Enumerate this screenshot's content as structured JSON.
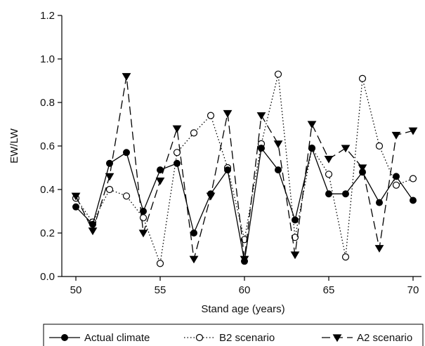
{
  "chart_data": {
    "type": "line",
    "title": "",
    "xlabel": "Stand age (years)",
    "ylabel": "EW/LW",
    "xlim": [
      50,
      70
    ],
    "ylim": [
      0.0,
      1.2
    ],
    "xticks": [
      50,
      55,
      60,
      65,
      70
    ],
    "xtick_labels": [
      "50",
      "55",
      "60",
      "65",
      "70"
    ],
    "yticks": [
      0.0,
      0.2,
      0.4,
      0.6,
      0.8,
      1.0,
      1.2
    ],
    "ytick_labels": [
      "0.0",
      "0.2",
      "0.4",
      "0.6",
      "0.8",
      "1.0",
      "1.2"
    ],
    "grid": false,
    "legend_position": "bottom",
    "x": [
      50,
      51,
      52,
      53,
      54,
      55,
      56,
      57,
      58,
      59,
      60,
      61,
      62,
      63,
      64,
      65,
      66,
      67,
      68,
      69,
      70
    ],
    "series": [
      {
        "name": "Actual climate",
        "line_style": "solid",
        "marker": "filled-circle",
        "color": "#000000",
        "values": [
          0.32,
          0.24,
          0.52,
          0.57,
          0.3,
          0.49,
          0.52,
          0.2,
          0.38,
          0.49,
          0.07,
          0.59,
          0.49,
          0.26,
          0.59,
          0.38,
          0.38,
          0.48,
          0.34,
          0.46,
          0.35
        ]
      },
      {
        "name": "B2 scenario",
        "line_style": "dotted",
        "marker": "open-circle",
        "color": "#000000",
        "values": [
          0.36,
          0.25,
          0.4,
          0.37,
          0.27,
          0.06,
          0.57,
          0.66,
          0.74,
          0.5,
          0.17,
          0.61,
          0.93,
          0.18,
          0.59,
          0.47,
          0.09,
          0.91,
          0.6,
          0.42,
          0.45
        ]
      },
      {
        "name": "A2 scenario",
        "line_style": "dashed",
        "marker": "filled-triangle-down",
        "color": "#000000",
        "values": [
          0.37,
          0.21,
          0.46,
          0.92,
          0.2,
          0.44,
          0.68,
          0.08,
          0.37,
          0.75,
          0.08,
          0.74,
          0.61,
          0.1,
          0.7,
          0.54,
          0.59,
          0.5,
          0.13,
          0.65,
          0.67
        ]
      }
    ]
  }
}
